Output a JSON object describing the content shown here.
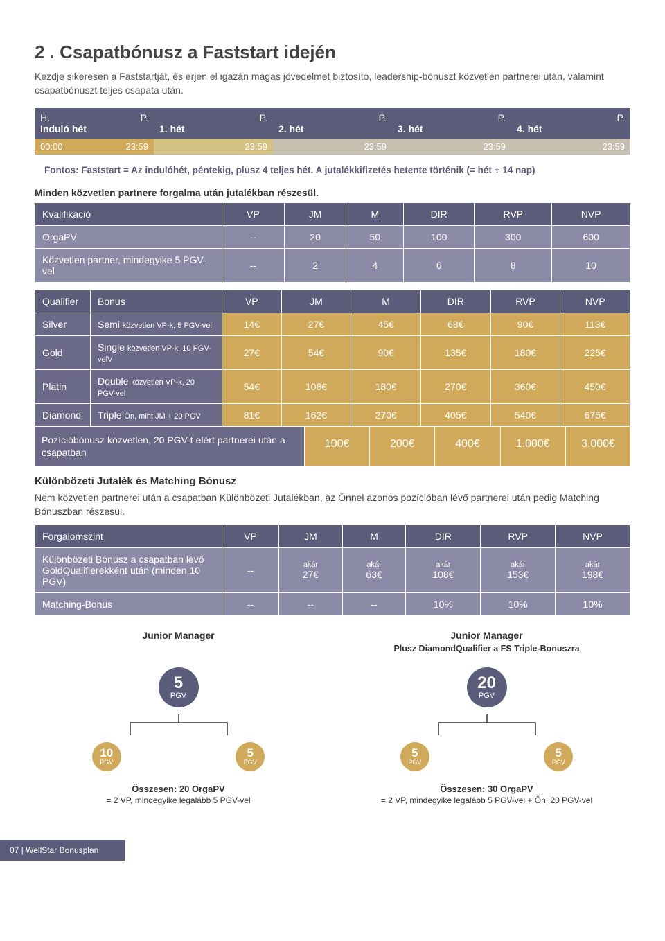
{
  "title": "2 . Csapatbónusz a Faststart idején",
  "intro": "Kezdje sikeresen a Faststartját, és érjen el igazán magas jövedelmet biztosító, leadership-bónuszt közvetlen partnerei után, valamint csapatbónuszt teljes csapata után.",
  "timeline": {
    "head_bg": "#5b5b7a",
    "cells_head": [
      {
        "l": "H.",
        "r": "P.",
        "m": "Induló hét"
      },
      {
        "l": "",
        "r": "P.",
        "m": "1. hét"
      },
      {
        "l": "",
        "r": "P.",
        "m": "2. hét"
      },
      {
        "l": "",
        "r": "P.",
        "m": "3. hét"
      },
      {
        "l": "",
        "r": "P.",
        "m": "4. hét"
      }
    ],
    "body_colors": [
      "#d0a95a",
      "#d4c283",
      "#c7bfb0",
      "#c7bfb0",
      "#c7bfb0"
    ],
    "cells_body": [
      {
        "l": "00:00",
        "r": "23:59"
      },
      {
        "l": "",
        "r": "23:59"
      },
      {
        "l": "",
        "r": "23:59"
      },
      {
        "l": "",
        "r": "23:59"
      },
      {
        "l": "",
        "r": "23:59"
      }
    ]
  },
  "note_color": "#5b5b7a",
  "note": "Fontos: Faststart = Az indulóhét, péntekig, plusz 4 teljes hét. A jutalékkifizetés hetente történik (= hét + 14 nap)",
  "subnote": "Minden közvetlen partnere forgalma után jutalékban részesül.",
  "table1": {
    "header": [
      "Kvalifikáció",
      "VP",
      "JM",
      "M",
      "DIR",
      "RVP",
      "NVP"
    ],
    "rows": [
      [
        "OrgaPV",
        "--",
        "20",
        "50",
        "100",
        "300",
        "600"
      ],
      [
        "Közvetlen partner, mindegyike 5 PGV-vel",
        "--",
        "2",
        "4",
        "6",
        "8",
        "10"
      ]
    ]
  },
  "table2": {
    "header": [
      "Qualifier",
      "Bonus",
      "VP",
      "JM",
      "M",
      "DIR",
      "RVP",
      "NVP"
    ],
    "rows": [
      {
        "q": "Silver",
        "b": "Semi",
        "bs": "közvetlen VP-k, 5 PGV-vel",
        "v": [
          "14€",
          "27€",
          "45€",
          "68€",
          "90€",
          "113€"
        ]
      },
      {
        "q": "Gold",
        "b": "Single",
        "bs": "közvetlen VP-k, 10 PGV-velV",
        "v": [
          "27€",
          "54€",
          "90€",
          "135€",
          "180€",
          "225€"
        ]
      },
      {
        "q": "Platin",
        "b": "Double",
        "bs": "közvetlen VP-k, 20 PGV-vel",
        "v": [
          "54€",
          "108€",
          "180€",
          "270€",
          "360€",
          "450€"
        ]
      },
      {
        "q": "Diamond",
        "b": "Triple",
        "bs": "Ön, mint JM + 20 PGV",
        "v": [
          "81€",
          "162€",
          "270€",
          "405€",
          "540€",
          "675€"
        ]
      }
    ],
    "pos_label": "Pozícióbónusz közvetlen, 20 PGV-t elért partnerei után a csapatban",
    "pos_vals": [
      "100€",
      "200€",
      "400€",
      "1.000€",
      "3.000€"
    ]
  },
  "diff_title": "Különbözeti Jutalék és Matching Bónusz",
  "diff_text": "Nem közvetlen partnerei után a csapatban Különbözeti Jutalékban, az Önnel azonos pozícióban lévő partnerei után pedig Matching Bónuszban részesül.",
  "table3": {
    "header": [
      "Forgalomszint",
      "VP",
      "JM",
      "M",
      "DIR",
      "RVP",
      "NVP"
    ],
    "rows": [
      {
        "label": "Különbözeti Bónusz a csapatban lévő GoldQualifierekként után (minden 10 PGV)",
        "vals": [
          {
            "t": "--"
          },
          {
            "s": "akár",
            "t": "27€"
          },
          {
            "s": "akár",
            "t": "63€"
          },
          {
            "s": "akár",
            "t": "108€"
          },
          {
            "s": "akár",
            "t": "153€"
          },
          {
            "s": "akár",
            "t": "198€"
          }
        ]
      },
      {
        "label": "Matching-Bonus",
        "vals": [
          {
            "t": "--"
          },
          {
            "t": "--"
          },
          {
            "t": "--"
          },
          {
            "t": "10%"
          },
          {
            "t": "10%"
          },
          {
            "t": "10%"
          }
        ]
      }
    ]
  },
  "trees": {
    "left": {
      "title": "Junior Manager",
      "sub": "",
      "top": {
        "n": "5",
        "l": "PGV"
      },
      "children": [
        {
          "n": "10",
          "l": "PGV"
        },
        {
          "n": "5",
          "l": "PGV"
        }
      ],
      "foot1": "Összesen: 20 OrgaPV",
      "foot2": "= 2 VP, mindegyike legalább 5 PGV-vel"
    },
    "right": {
      "title": "Junior Manager",
      "sub": "Plusz DiamondQualifier a FS Triple-Bonuszra",
      "top": {
        "n": "20",
        "l": "PGV"
      },
      "children": [
        {
          "n": "5",
          "l": "PGV"
        },
        {
          "n": "5",
          "l": "PGV"
        }
      ],
      "foot1": "Összesen: 30 OrgaPV",
      "foot2": "= 2 VP, mindegyike legalább 5 PGV-vel + Ön, 20 PGV-vel"
    }
  },
  "footer": "07 | WellStar Bonusplan"
}
